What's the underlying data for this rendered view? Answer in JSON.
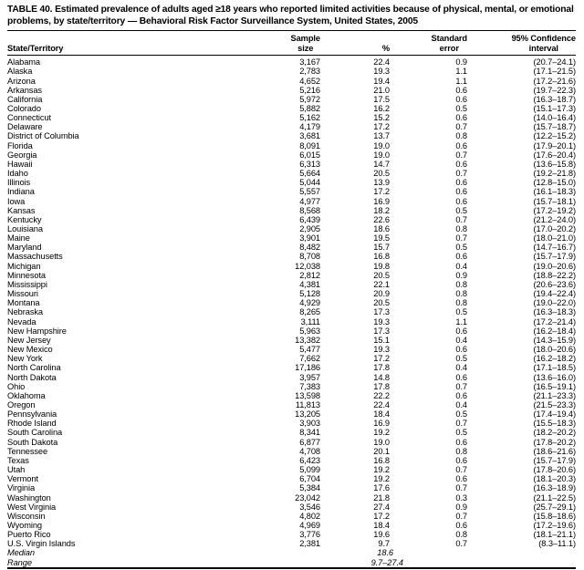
{
  "table": {
    "title": "TABLE 40. Estimated prevalence of adults aged ≥18 years who reported limited activities because of physical, mental, or emotional problems, by state/territory — Behavioral Risk Factor Surveillance System, United States, 2005",
    "header": {
      "state": "State/Territory",
      "sample_line1": "Sample",
      "sample_line2": "size",
      "pct": "%",
      "se_line1": "Standard",
      "se_line2": "error",
      "ci_line1": "95% Confidence",
      "ci_line2": "interval"
    },
    "rows": [
      [
        "Alabama",
        "3,167",
        "22.4",
        "0.9",
        "(20.7–24.1)"
      ],
      [
        "Alaska",
        "2,783",
        "19.3",
        "1.1",
        "(17.1–21.5)"
      ],
      [
        "Arizona",
        "4,652",
        "19.4",
        "1.1",
        "(17.2–21.6)"
      ],
      [
        "Arkansas",
        "5,216",
        "21.0",
        "0.6",
        "(19.7–22.3)"
      ],
      [
        "California",
        "5,972",
        "17.5",
        "0.6",
        "(16.3–18.7)"
      ],
      [
        "Colorado",
        "5,882",
        "16.2",
        "0.5",
        "(15.1–17.3)"
      ],
      [
        "Connecticut",
        "5,162",
        "15.2",
        "0.6",
        "(14.0–16.4)"
      ],
      [
        "Delaware",
        "4,179",
        "17.2",
        "0.7",
        "(15.7–18.7)"
      ],
      [
        "District of Columbia",
        "3,681",
        "13.7",
        "0.8",
        "(12.2–15.2)"
      ],
      [
        "Florida",
        "8,091",
        "19.0",
        "0.6",
        "(17.9–20.1)"
      ],
      [
        "Georgia",
        "6,015",
        "19.0",
        "0.7",
        "(17.6–20.4)"
      ],
      [
        "Hawaii",
        "6,313",
        "14.7",
        "0.6",
        "(13.6–15.8)"
      ],
      [
        "Idaho",
        "5,664",
        "20.5",
        "0.7",
        "(19.2–21.8)"
      ],
      [
        "Illinois",
        "5,044",
        "13.9",
        "0.6",
        "(12.8–15.0)"
      ],
      [
        "Indiana",
        "5,557",
        "17.2",
        "0.6",
        "(16.1–18.3)"
      ],
      [
        "Iowa",
        "4,977",
        "16.9",
        "0.6",
        "(15.7–18.1)"
      ],
      [
        "Kansas",
        "8,568",
        "18.2",
        "0.5",
        "(17.2–19.2)"
      ],
      [
        "Kentucky",
        "6,439",
        "22.6",
        "0.7",
        "(21.2–24.0)"
      ],
      [
        "Louisiana",
        "2,905",
        "18.6",
        "0.8",
        "(17.0–20.2)"
      ],
      [
        "Maine",
        "3,901",
        "19.5",
        "0.7",
        "(18.0–21.0)"
      ],
      [
        "Maryland",
        "8,482",
        "15.7",
        "0.5",
        "(14.7–16.7)"
      ],
      [
        "Massachusetts",
        "8,708",
        "16.8",
        "0.6",
        "(15.7–17.9)"
      ],
      [
        "Michigan",
        "12,038",
        "19.8",
        "0.4",
        "(19.0–20.6)"
      ],
      [
        "Minnesota",
        "2,812",
        "20.5",
        "0.9",
        "(18.8–22.2)"
      ],
      [
        "Mississippi",
        "4,381",
        "22.1",
        "0.8",
        "(20.6–23.6)"
      ],
      [
        "Missouri",
        "5,128",
        "20.9",
        "0.8",
        "(19.4–22.4)"
      ],
      [
        "Montana",
        "4,929",
        "20.5",
        "0.8",
        "(19.0–22.0)"
      ],
      [
        "Nebraska",
        "8,265",
        "17.3",
        "0.5",
        "(16.3–18.3)"
      ],
      [
        "Nevada",
        "3,111",
        "19.3",
        "1.1",
        "(17.2–21.4)"
      ],
      [
        "New Hampshire",
        "5,963",
        "17.3",
        "0.6",
        "(16.2–18.4)"
      ],
      [
        "New Jersey",
        "13,382",
        "15.1",
        "0.4",
        "(14.3–15.9)"
      ],
      [
        "New Mexico",
        "5,477",
        "19.3",
        "0.6",
        "(18.0–20.6)"
      ],
      [
        "New York",
        "7,662",
        "17.2",
        "0.5",
        "(16.2–18.2)"
      ],
      [
        "North Carolina",
        "17,186",
        "17.8",
        "0.4",
        "(17.1–18.5)"
      ],
      [
        "North Dakota",
        "3,957",
        "14.8",
        "0.6",
        "(13.6–16.0)"
      ],
      [
        "Ohio",
        "7,383",
        "17.8",
        "0.7",
        "(16.5–19.1)"
      ],
      [
        "Oklahoma",
        "13,598",
        "22.2",
        "0.6",
        "(21.1–23.3)"
      ],
      [
        "Oregon",
        "11,813",
        "22.4",
        "0.4",
        "(21.5–23.3)"
      ],
      [
        "Pennsylvania",
        "13,205",
        "18.4",
        "0.5",
        "(17.4–19.4)"
      ],
      [
        "Rhode Island",
        "3,903",
        "16.9",
        "0.7",
        "(15.5–18.3)"
      ],
      [
        "South Carolina",
        "8,341",
        "19.2",
        "0.5",
        "(18.2–20.2)"
      ],
      [
        "South Dakota",
        "6,877",
        "19.0",
        "0.6",
        "(17.8–20.2)"
      ],
      [
        "Tennessee",
        "4,708",
        "20.1",
        "0.8",
        "(18.6–21.6)"
      ],
      [
        "Texas",
        "6,423",
        "16.8",
        "0.6",
        "(15.7–17.9)"
      ],
      [
        "Utah",
        "5,099",
        "19.2",
        "0.7",
        "(17.8–20.6)"
      ],
      [
        "Vermont",
        "6,704",
        "19.2",
        "0.6",
        "(18.1–20.3)"
      ],
      [
        "Virginia",
        "5,384",
        "17.6",
        "0.7",
        "(16.3–18.9)"
      ],
      [
        "Washington",
        "23,042",
        "21.8",
        "0.3",
        "(21.1–22.5)"
      ],
      [
        "West Virginia",
        "3,546",
        "27.4",
        "0.9",
        "(25.7–29.1)"
      ],
      [
        "Wisconsin",
        "4,802",
        "17.2",
        "0.7",
        "(15.8–18.6)"
      ],
      [
        "Wyoming",
        "4,969",
        "18.4",
        "0.6",
        "(17.2–19.6)"
      ],
      [
        "Puerto Rico",
        "3,776",
        "19.6",
        "0.8",
        "(18.1–21.1)"
      ],
      [
        "U.S. Virgin Islands",
        "2,381",
        "9.7",
        "0.7",
        "(8.3–11.1)"
      ]
    ],
    "summary_rows": [
      {
        "label": "Median",
        "value": "18.6"
      },
      {
        "label": "Range",
        "value": "9.7–27.4"
      }
    ]
  }
}
